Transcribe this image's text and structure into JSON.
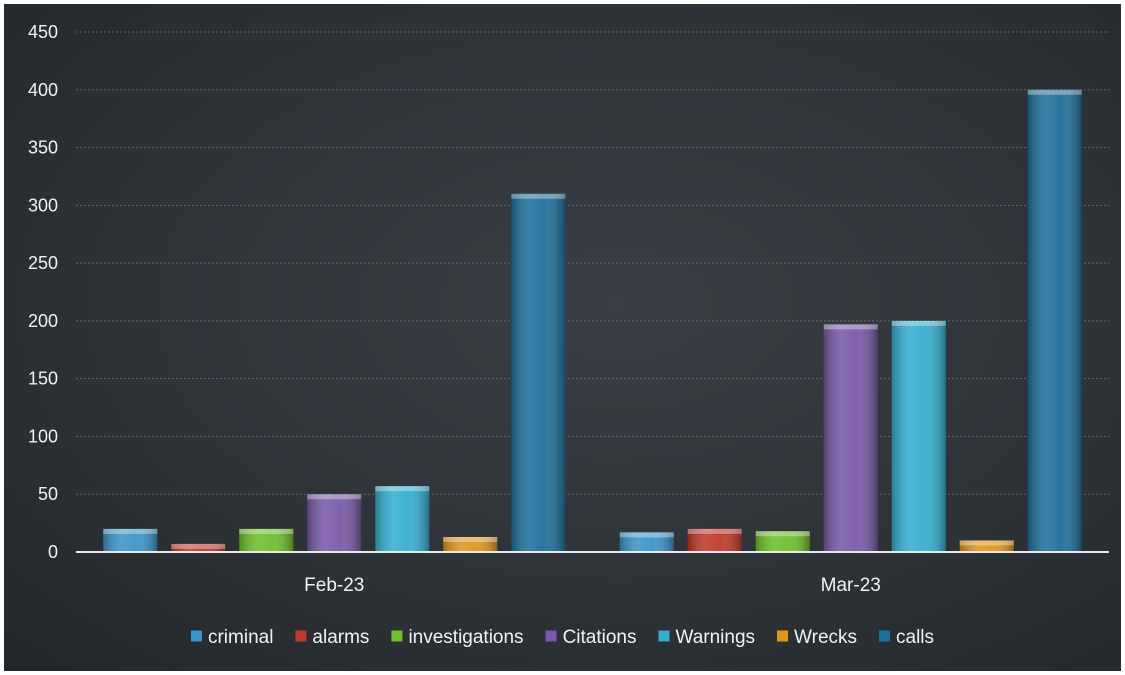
{
  "chart_data": {
    "type": "bar",
    "categories": [
      "Feb-23",
      "Mar-23"
    ],
    "series": [
      {
        "name": "criminal",
        "values": [
          20,
          17
        ],
        "color": "#3d95c9"
      },
      {
        "name": "alarms",
        "values": [
          7,
          20
        ],
        "color": "#c0392b"
      },
      {
        "name": "investigations",
        "values": [
          20,
          18
        ],
        "color": "#6fbf2e"
      },
      {
        "name": "Citations",
        "values": [
          50,
          197
        ],
        "color": "#7a5aa8"
      },
      {
        "name": "Warnings",
        "values": [
          57,
          200
        ],
        "color": "#37aed0"
      },
      {
        "name": "Wrecks",
        "values": [
          13,
          10
        ],
        "color": "#e0951e"
      },
      {
        "name": "calls",
        "values": [
          310,
          400
        ],
        "color": "#1f6f9b"
      }
    ],
    "yticks": [
      "0",
      "50",
      "100",
      "150",
      "200",
      "250",
      "300",
      "350",
      "400",
      "450"
    ],
    "ylim": [
      0,
      450
    ],
    "grid": true,
    "legend": "bottom",
    "title": "",
    "xlabel": "",
    "ylabel": ""
  }
}
